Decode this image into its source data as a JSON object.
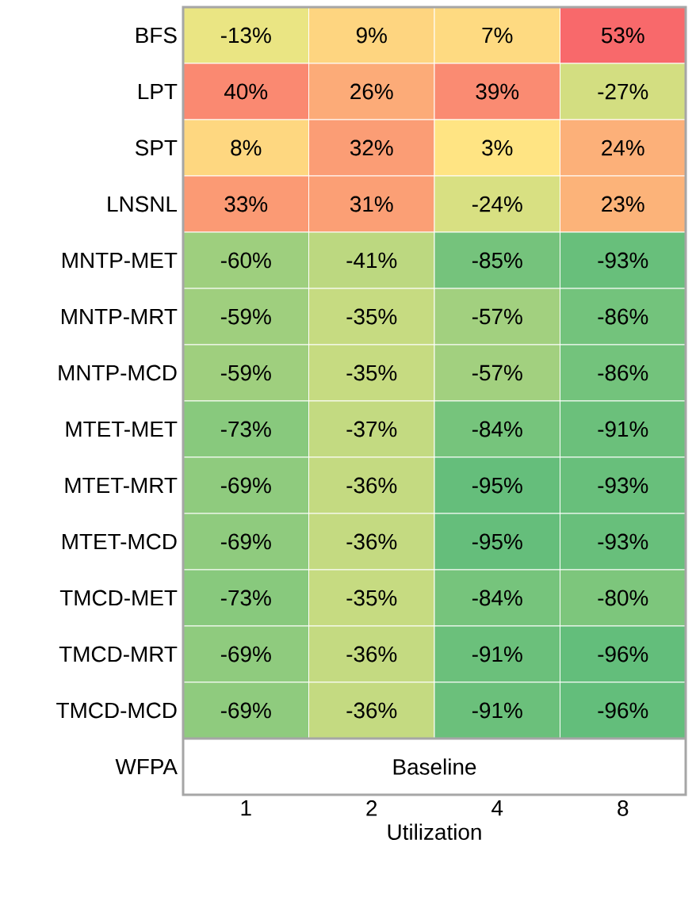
{
  "chart_data": {
    "type": "heatmap",
    "xlabel": "Utilization",
    "categories": [
      "1",
      "2",
      "4",
      "8"
    ],
    "y_categories": [
      "BFS",
      "LPT",
      "SPT",
      "LNSNL",
      "MNTP-MET",
      "MNTP-MRT",
      "MNTP-MCD",
      "MTET-MET",
      "MTET-MRT",
      "MTET-MCD",
      "TMCD-MET",
      "TMCD-MRT",
      "TMCD-MCD",
      "WFPA"
    ],
    "cells": [
      [
        -13,
        9,
        7,
        53
      ],
      [
        40,
        26,
        39,
        -27
      ],
      [
        8,
        32,
        3,
        24
      ],
      [
        33,
        31,
        -24,
        23
      ],
      [
        -60,
        -41,
        -85,
        -93
      ],
      [
        -59,
        -35,
        -57,
        -86
      ],
      [
        -59,
        -35,
        -57,
        -86
      ],
      [
        -73,
        -37,
        -84,
        -91
      ],
      [
        -69,
        -36,
        -95,
        -93
      ],
      [
        -69,
        -36,
        -95,
        -93
      ],
      [
        -73,
        -35,
        -84,
        -80
      ],
      [
        -69,
        -36,
        -91,
        -96
      ],
      [
        -69,
        -36,
        -91,
        -96
      ],
      [
        null,
        null,
        null,
        null
      ]
    ],
    "cell_labels": [
      [
        "-13%",
        "9%",
        "7%",
        "53%"
      ],
      [
        "40%",
        "26%",
        "39%",
        "-27%"
      ],
      [
        "8%",
        "32%",
        "3%",
        "24%"
      ],
      [
        "33%",
        "31%",
        "-24%",
        "23%"
      ],
      [
        "-60%",
        "-41%",
        "-85%",
        "-93%"
      ],
      [
        "-59%",
        "-35%",
        "-57%",
        "-86%"
      ],
      [
        "-59%",
        "-35%",
        "-57%",
        "-86%"
      ],
      [
        "-73%",
        "-37%",
        "-84%",
        "-91%"
      ],
      [
        "-69%",
        "-36%",
        "-95%",
        "-93%"
      ],
      [
        "-69%",
        "-36%",
        "-95%",
        "-93%"
      ],
      [
        "-73%",
        "-35%",
        "-84%",
        "-80%"
      ],
      [
        "-69%",
        "-36%",
        "-91%",
        "-96%"
      ],
      [
        "-69%",
        "-36%",
        "-91%",
        "-96%"
      ],
      [
        null,
        null,
        null,
        null
      ]
    ],
    "annotations": [
      "Baseline"
    ]
  }
}
